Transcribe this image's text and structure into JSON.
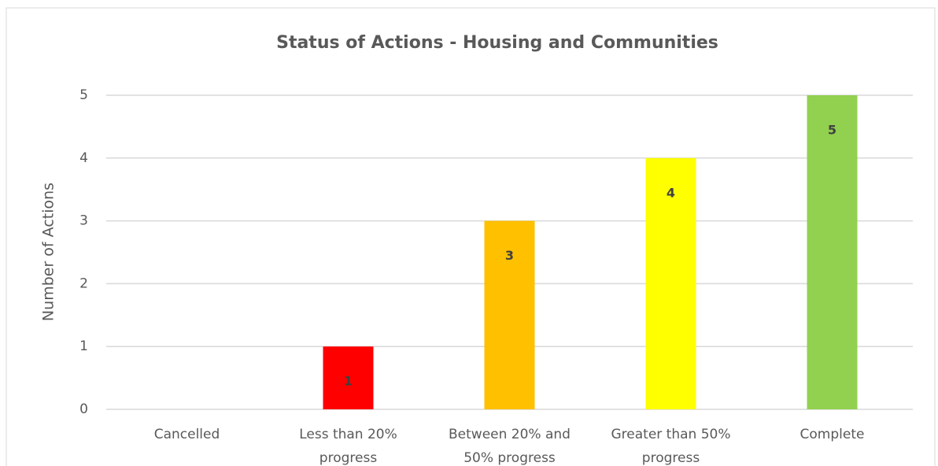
{
  "chart_data": {
    "type": "bar",
    "title": "Status of Actions - Housing and Communities",
    "y_label": "Number of Actions",
    "categories": [
      "Cancelled",
      "Less than 20% progress",
      "Between 20% and 50% progress",
      "Greater than 50% progress",
      "Complete"
    ],
    "values": [
      0,
      1,
      3,
      4,
      5
    ],
    "colors": [
      "#a5a5a5",
      "#ff0000",
      "#ffc000",
      "#ffff00",
      "#92d050"
    ],
    "ylim": [
      0,
      5
    ],
    "yticks": [
      0,
      1,
      2,
      3,
      4,
      5
    ],
    "grid": true
  }
}
